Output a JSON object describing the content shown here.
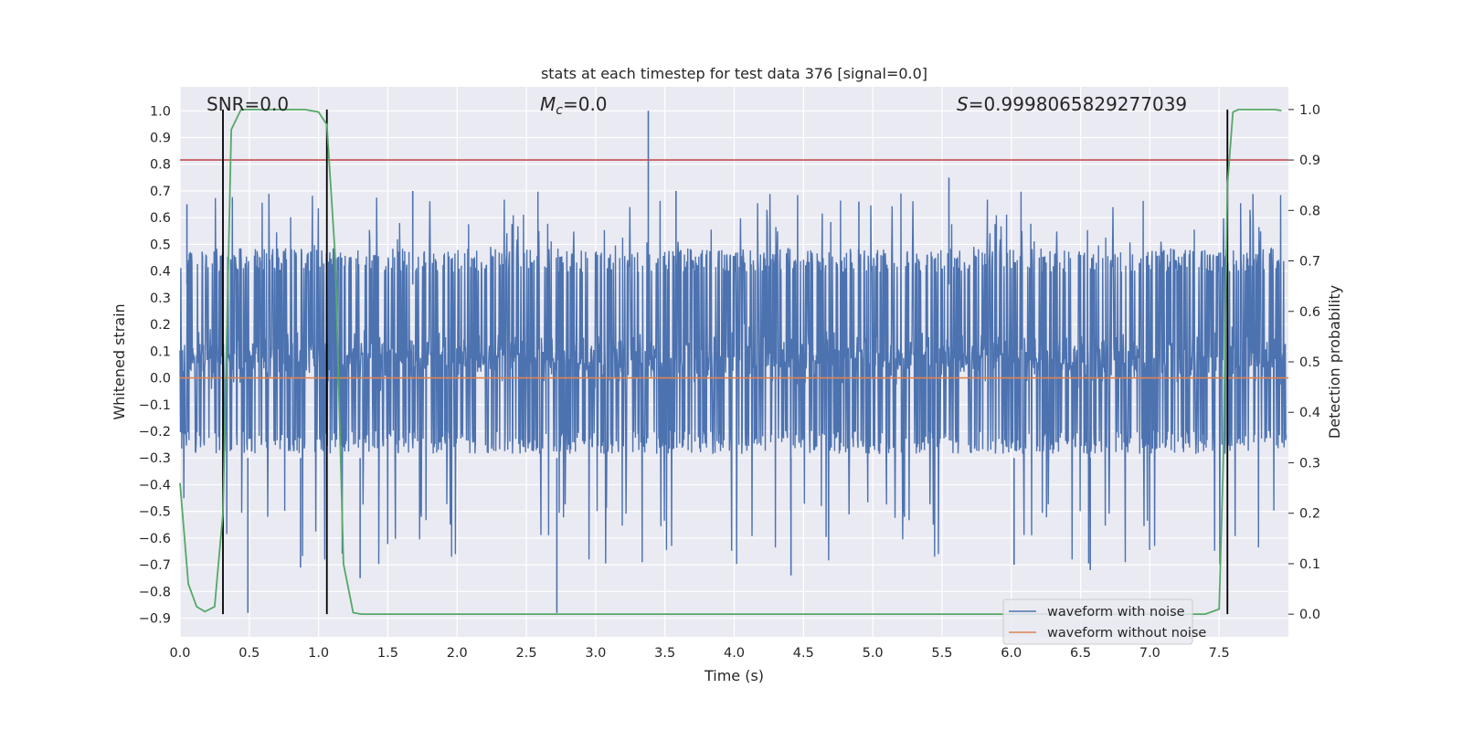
{
  "chart_data": {
    "type": "line",
    "title": "stats at each timestep for test data 376 [signal=0.0]",
    "xlabel": "Time (s)",
    "ylabel": "Whitened strain",
    "y2label": "Detection probability",
    "xlim": [
      0.0,
      8.0
    ],
    "ylim": [
      -0.97,
      1.09
    ],
    "y2lim": [
      -0.045,
      1.045
    ],
    "x_ticks": [
      0.0,
      0.5,
      1.0,
      1.5,
      2.0,
      2.5,
      3.0,
      3.5,
      4.0,
      4.5,
      5.0,
      5.5,
      6.0,
      6.5,
      7.0,
      7.5
    ],
    "x_tick_labels": [
      "0.0",
      "0.5",
      "1.0",
      "1.5",
      "2.0",
      "2.5",
      "3.0",
      "3.5",
      "4.0",
      "4.5",
      "5.0",
      "5.5",
      "6.0",
      "6.5",
      "7.0",
      "7.5"
    ],
    "y_ticks": [
      -0.9,
      -0.8,
      -0.7,
      -0.6,
      -0.5,
      -0.4,
      -0.3,
      -0.2,
      -0.1,
      0.0,
      0.1,
      0.2,
      0.3,
      0.4,
      0.5,
      0.6,
      0.7,
      0.8,
      0.9,
      1.0
    ],
    "y_tick_labels": [
      "−0.9",
      "−0.8",
      "−0.7",
      "−0.6",
      "−0.5",
      "−0.4",
      "−0.3",
      "−0.2",
      "−0.1",
      "0.0",
      "0.1",
      "0.2",
      "0.3",
      "0.4",
      "0.5",
      "0.6",
      "0.7",
      "0.8",
      "0.9",
      "1.0"
    ],
    "y2_ticks": [
      0.0,
      0.1,
      0.2,
      0.3,
      0.4,
      0.5,
      0.6,
      0.7,
      0.8,
      0.9,
      1.0
    ],
    "y2_tick_labels": [
      "0.0",
      "0.1",
      "0.2",
      "0.3",
      "0.4",
      "0.5",
      "0.6",
      "0.7",
      "0.8",
      "0.9",
      "1.0"
    ],
    "annotations": {
      "snr": "SNR=0.0",
      "mc_symbol": "M",
      "mc_sub": "c",
      "mc_value": "=0.0",
      "s_symbol": "S",
      "s_value": "=0.9998065829277039"
    },
    "threshold": {
      "axis": "y2",
      "value": 0.9,
      "color": "#c44e52"
    },
    "vertical_lines": [
      0.31,
      1.06,
      7.56
    ],
    "vertical_lines_range_y2": [
      0.0,
      1.0
    ],
    "series": [
      {
        "name": "waveform with noise",
        "axis": "y",
        "color": "#4c72b0",
        "kind": "noise",
        "band_core": [
          -0.25,
          0.45
        ],
        "envelope": [
          -0.88,
          1.0
        ],
        "peaks": [
          {
            "x": 3.38,
            "value": 1.0
          },
          {
            "x": 0.05,
            "value": 0.65
          },
          {
            "x": 1.68,
            "value": 0.7
          },
          {
            "x": 3.58,
            "value": 0.7
          },
          {
            "x": 4.9,
            "value": 0.66
          },
          {
            "x": 5.55,
            "value": 0.75
          },
          {
            "x": 2.72,
            "value": -0.88
          },
          {
            "x": 0.49,
            "value": -0.88
          },
          {
            "x": 0.87,
            "value": -0.71
          },
          {
            "x": 1.3,
            "value": -0.75
          },
          {
            "x": 4.41,
            "value": -0.74
          },
          {
            "x": 6.02,
            "value": -0.7
          },
          {
            "x": 6.57,
            "value": -0.72
          }
        ]
      },
      {
        "name": "waveform without noise",
        "axis": "y",
        "color": "#dd8452",
        "kind": "constant",
        "value": 0.0
      },
      {
        "name": "detection probability",
        "axis": "y2",
        "color": "#55a868",
        "kind": "line",
        "x": [
          0.0,
          0.06,
          0.12,
          0.18,
          0.25,
          0.31,
          0.37,
          0.44,
          0.5,
          0.6,
          0.75,
          0.9,
          1.0,
          1.06,
          1.12,
          1.18,
          1.25,
          1.31,
          1.4,
          2.0,
          3.0,
          4.0,
          5.0,
          6.0,
          7.0,
          7.4,
          7.5,
          7.53,
          7.56,
          7.6,
          7.64,
          7.7,
          7.8,
          7.9,
          7.95
        ],
        "y": [
          0.26,
          0.06,
          0.015,
          0.005,
          0.015,
          0.2,
          0.96,
          1.0,
          1.0,
          1.0,
          1.0,
          1.0,
          0.995,
          0.97,
          0.71,
          0.1,
          0.003,
          0.0,
          0.0,
          0.0,
          0.0,
          0.0,
          0.0,
          0.0,
          0.0,
          0.0,
          0.01,
          0.3,
          0.85,
          0.995,
          1.0,
          1.0,
          1.0,
          1.0,
          0.998
        ]
      }
    ],
    "legend": {
      "position": "lower-right",
      "entries": [
        "waveform with noise",
        "waveform without noise"
      ]
    }
  }
}
